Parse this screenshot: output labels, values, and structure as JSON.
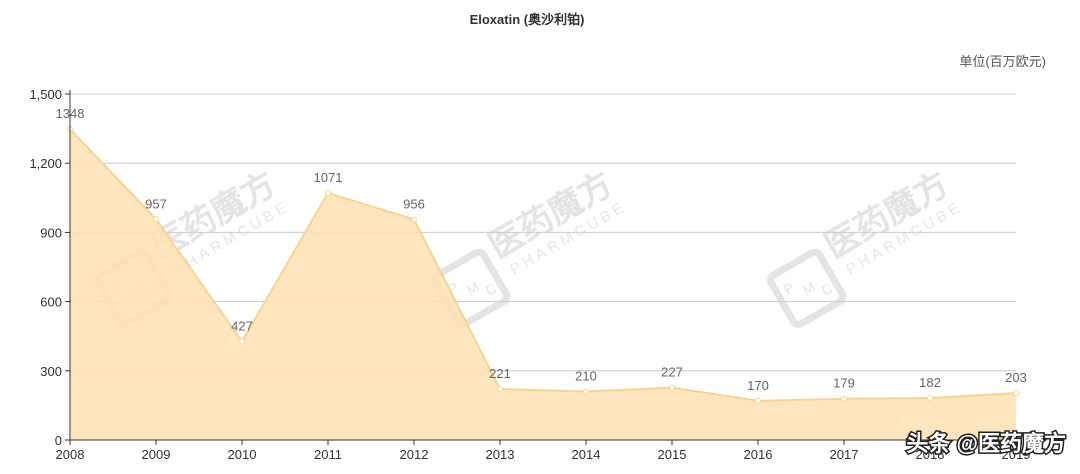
{
  "chart_data": {
    "type": "area",
    "title": "Eloxatin (奥沙利铂)",
    "unit_label": "单位(百万欧元)",
    "x": [
      "2008",
      "2009",
      "2010",
      "2011",
      "2012",
      "2013",
      "2014",
      "2015",
      "2016",
      "2017",
      "2018",
      "2019"
    ],
    "series": [
      {
        "values": [
          1348,
          957,
          427,
          1071,
          956,
          221,
          210,
          227,
          170,
          179,
          182,
          203
        ],
        "color": "#fde2b4",
        "line_color": "#fad48c"
      }
    ],
    "ylim": [
      0,
      1500
    ],
    "yticks": [
      0,
      300,
      600,
      900,
      1200,
      1500
    ],
    "ytick_labels": [
      "0",
      "300",
      "600",
      "900",
      "1,200",
      "1,500"
    ],
    "xlabel": "",
    "ylabel": "",
    "grid": true
  },
  "watermark": {
    "text": "医药魔方",
    "sub": "PHARMCUBE",
    "badge_letters": [
      "P",
      "M",
      "C"
    ]
  },
  "credit": "头条 @医药魔方",
  "colors": {
    "axis": "#333333",
    "grid": "#cccccc",
    "watermark": "#e4e4e4"
  }
}
